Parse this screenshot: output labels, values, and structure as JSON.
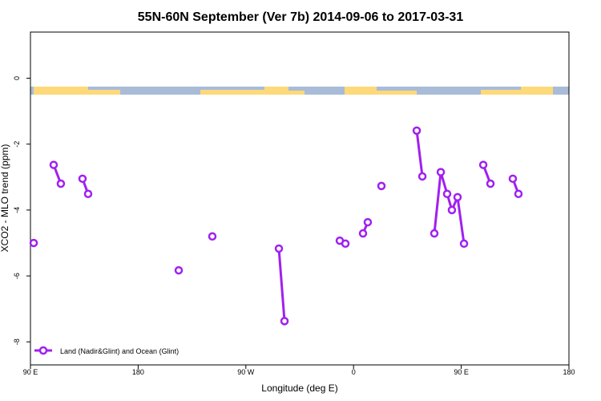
{
  "chart_data": {
    "type": "line",
    "title": "55N-60N September (Ver 7b)   2014-09-06 to 2017-03-31",
    "xlabel": "Longitude (deg E)",
    "ylabel": "XCO2 - MLO trend (ppm)",
    "xlim": [
      90,
      540
    ],
    "ylim": [
      -8.7,
      1.4
    ],
    "xticks": [
      {
        "value": 90,
        "label": "90 E"
      },
      180,
      {
        "value": 270,
        "label": "90 W"
      },
      {
        "value": 360,
        "label": "0"
      },
      {
        "value": 450,
        "label": "90 E"
      },
      {
        "value": 540,
        "label": "180"
      }
    ],
    "yticks": [
      0,
      -2,
      -4,
      -6,
      -8
    ],
    "legend": "bottom-left",
    "series": [
      {
        "name": "Land (Nadir&Glint) and Ocean (Glint)",
        "color": "#a020f0",
        "x": [
          92.7,
          null,
          109.4,
          115.4,
          null,
          133.5,
          138.2,
          null,
          213.9,
          null,
          242,
          null,
          297.6,
          302.3,
          null,
          348.5,
          353.2,
          null,
          367.9,
          371.9,
          null,
          383.3,
          null,
          412.8,
          417.5,
          null,
          427.5,
          432.9,
          438.2,
          442.2,
          446.9,
          452.3,
          null,
          468.4,
          474.4,
          null,
          493.1,
          497.8
        ],
        "values": [
          -5.0,
          null,
          -2.63,
          -3.2,
          null,
          -3.05,
          -3.51,
          null,
          -5.83,
          null,
          -4.8,
          null,
          -5.17,
          -7.37,
          null,
          -4.93,
          -5.02,
          null,
          -4.71,
          -4.37,
          null,
          -3.27,
          null,
          -1.59,
          -2.98,
          null,
          -4.71,
          -2.85,
          -3.51,
          -4.0,
          -3.61,
          -5.02,
          null,
          -2.63,
          -3.2,
          null,
          -3.05,
          -3.51
        ]
      }
    ]
  }
}
